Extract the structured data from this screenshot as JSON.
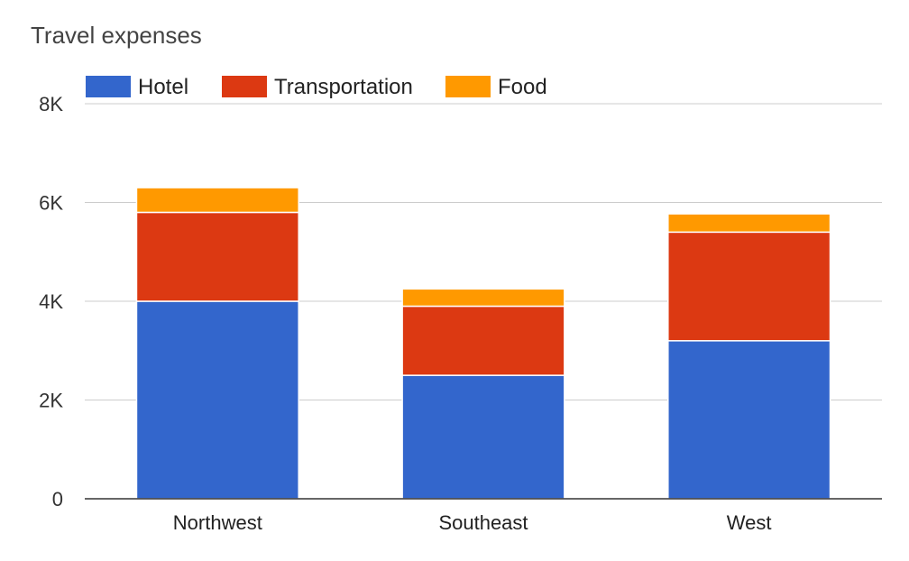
{
  "chart_data": {
    "type": "bar",
    "stacked": true,
    "title": "Travel expenses",
    "categories": [
      "Northwest",
      "Southeast",
      "West"
    ],
    "series": [
      {
        "name": "Hotel",
        "color": "#3366cc",
        "values": [
          4000,
          2500,
          3200
        ]
      },
      {
        "name": "Transportation",
        "color": "#dc3912",
        "values": [
          1800,
          1400,
          2200
        ]
      },
      {
        "name": "Food",
        "color": "#ff9900",
        "values": [
          500,
          350,
          370
        ]
      }
    ],
    "ylim": [
      0,
      8000
    ],
    "yticks": [
      {
        "value": 0,
        "label": "0"
      },
      {
        "value": 2000,
        "label": "2K"
      },
      {
        "value": 4000,
        "label": "4K"
      },
      {
        "value": 6000,
        "label": "6K"
      },
      {
        "value": 8000,
        "label": "8K"
      }
    ],
    "xlabel": "",
    "ylabel": "",
    "grid": true,
    "legend_position": "top-left"
  }
}
